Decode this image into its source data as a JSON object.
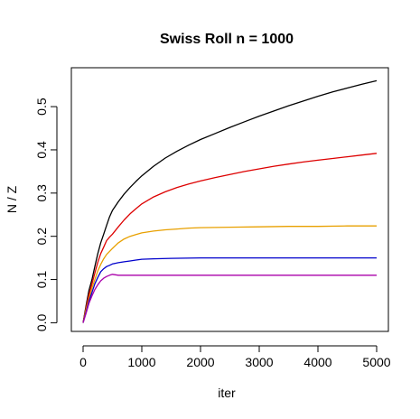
{
  "chart_data": {
    "type": "line",
    "title": "Swiss Roll n = 1000",
    "xlabel": "iter",
    "ylabel": "N / Z",
    "xlim": [
      -200,
      5200
    ],
    "ylim": [
      -0.02,
      0.59
    ],
    "xticks": [
      0,
      1000,
      2000,
      3000,
      4000,
      5000
    ],
    "xtick_labels": [
      "0",
      "1000",
      "2000",
      "3000",
      "4000",
      "5000"
    ],
    "yticks": [
      0.0,
      0.1,
      0.2,
      0.3,
      0.4,
      0.5
    ],
    "ytick_labels": [
      "0.0",
      "0.1",
      "0.2",
      "0.3",
      "0.4",
      "0.5"
    ],
    "grid": false,
    "legend": "none",
    "series": [
      {
        "color": "#000000",
        "x": [
          0,
          50,
          100,
          150,
          200,
          250,
          300,
          350,
          400,
          450,
          500,
          600,
          700,
          800,
          900,
          1000,
          1200,
          1400,
          1600,
          1800,
          2000,
          2250,
          2500,
          2750,
          3000,
          3250,
          3500,
          3750,
          4000,
          4250,
          4500,
          4750,
          5000
        ],
        "y": [
          0.0,
          0.04,
          0.075,
          0.1,
          0.13,
          0.16,
          0.185,
          0.205,
          0.225,
          0.245,
          0.26,
          0.28,
          0.298,
          0.313,
          0.327,
          0.34,
          0.362,
          0.381,
          0.397,
          0.411,
          0.424,
          0.438,
          0.452,
          0.465,
          0.478,
          0.49,
          0.502,
          0.513,
          0.524,
          0.534,
          0.543,
          0.552,
          0.56
        ]
      },
      {
        "color": "#dd0000",
        "x": [
          0,
          50,
          100,
          150,
          200,
          250,
          300,
          350,
          400,
          450,
          500,
          600,
          700,
          800,
          900,
          1000,
          1200,
          1400,
          1600,
          1800,
          2000,
          2250,
          2500,
          2750,
          3000,
          3250,
          3500,
          3750,
          4000,
          4250,
          4500,
          4750,
          5000
        ],
        "y": [
          0.0,
          0.035,
          0.065,
          0.09,
          0.115,
          0.14,
          0.16,
          0.175,
          0.19,
          0.198,
          0.205,
          0.222,
          0.238,
          0.252,
          0.264,
          0.275,
          0.291,
          0.303,
          0.313,
          0.321,
          0.328,
          0.336,
          0.343,
          0.35,
          0.356,
          0.362,
          0.367,
          0.372,
          0.376,
          0.38,
          0.384,
          0.388,
          0.392
        ]
      },
      {
        "color": "#e8a000",
        "x": [
          0,
          50,
          100,
          150,
          200,
          250,
          300,
          350,
          400,
          450,
          500,
          600,
          700,
          800,
          900,
          1000,
          1200,
          1400,
          1600,
          1800,
          2000,
          2500,
          3000,
          3500,
          4000,
          4500,
          5000
        ],
        "y": [
          0.0,
          0.03,
          0.055,
          0.08,
          0.1,
          0.12,
          0.135,
          0.148,
          0.158,
          0.165,
          0.172,
          0.185,
          0.194,
          0.2,
          0.204,
          0.208,
          0.212,
          0.215,
          0.217,
          0.219,
          0.22,
          0.221,
          0.222,
          0.223,
          0.223,
          0.224,
          0.224
        ]
      },
      {
        "color": "#0000cc",
        "x": [
          0,
          50,
          100,
          150,
          200,
          250,
          300,
          350,
          400,
          450,
          500,
          600,
          700,
          800,
          900,
          1000,
          1200,
          1500,
          2000,
          3000,
          4000,
          5000
        ],
        "y": [
          0.0,
          0.025,
          0.05,
          0.07,
          0.09,
          0.105,
          0.118,
          0.125,
          0.13,
          0.133,
          0.136,
          0.139,
          0.141,
          0.143,
          0.145,
          0.147,
          0.148,
          0.149,
          0.15,
          0.15,
          0.15,
          0.15
        ]
      },
      {
        "color": "#aa00aa",
        "x": [
          0,
          50,
          100,
          150,
          200,
          250,
          300,
          350,
          400,
          450,
          500,
          550,
          600,
          800,
          1000,
          2000,
          3000,
          4000,
          5000
        ],
        "y": [
          0.0,
          0.022,
          0.045,
          0.062,
          0.077,
          0.088,
          0.097,
          0.103,
          0.107,
          0.11,
          0.112,
          0.111,
          0.11,
          0.11,
          0.11,
          0.11,
          0.11,
          0.11,
          0.11
        ]
      }
    ]
  }
}
